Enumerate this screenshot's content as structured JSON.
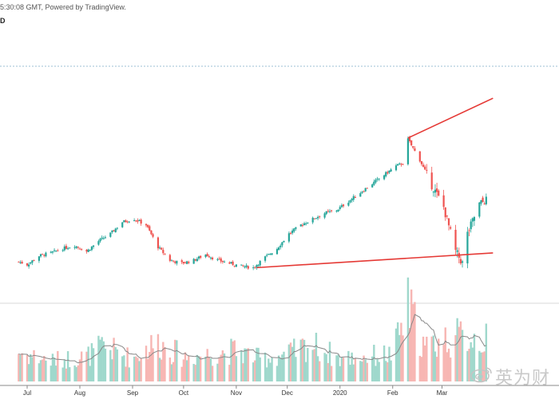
{
  "header": {
    "source_text": "5:30:08 GMT, Powered by TradingView.",
    "interval_text": "D"
  },
  "watermark": {
    "logo_icon": "weibo-icon",
    "text": "英为财"
  },
  "colors": {
    "up": "#26a69a",
    "down": "#ef5350",
    "volume_up": "#9fd8cc",
    "volume_down": "#f7b6b3",
    "trendline": "#e53935",
    "volume_ma": "#888888",
    "dotted_line": "#9ec1d6",
    "axis": "#888888"
  },
  "chart_data": {
    "type": "candlestick",
    "x_tick_labels": [
      "Jul",
      "Aug",
      "Sep",
      "Oct",
      "Nov",
      "Dec",
      "2020",
      "Feb",
      "Mar"
    ],
    "price_series": [
      [
        "2019-06-26",
        303
      ],
      [
        "2019-07-01",
        301
      ],
      [
        "2019-07-08",
        307
      ],
      [
        "2019-07-15",
        309
      ],
      [
        "2019-07-22",
        312
      ],
      [
        "2019-07-29",
        314
      ],
      [
        "2019-08-05",
        310
      ],
      [
        "2019-08-12",
        317
      ],
      [
        "2019-08-19",
        322
      ],
      [
        "2019-08-26",
        330
      ],
      [
        "2019-09-02",
        332
      ],
      [
        "2019-09-09",
        328
      ],
      [
        "2019-09-16",
        313
      ],
      [
        "2019-09-23",
        304
      ],
      [
        "2019-09-30",
        302
      ],
      [
        "2019-10-07",
        304
      ],
      [
        "2019-10-14",
        308
      ],
      [
        "2019-10-21",
        304
      ],
      [
        "2019-10-28",
        302
      ],
      [
        "2019-11-04",
        300
      ],
      [
        "2019-11-11",
        299
      ],
      [
        "2019-11-18",
        306
      ],
      [
        "2019-11-25",
        312
      ],
      [
        "2019-12-02",
        322
      ],
      [
        "2019-12-09",
        328
      ],
      [
        "2019-12-16",
        332
      ],
      [
        "2019-12-23",
        336
      ],
      [
        "2019-12-30",
        338
      ],
      [
        "2020-01-06",
        344
      ],
      [
        "2020-01-13",
        350
      ],
      [
        "2020-01-20",
        356
      ],
      [
        "2020-01-27",
        362
      ],
      [
        "2020-02-03",
        368
      ],
      [
        "2020-02-07",
        370
      ],
      [
        "2020-02-10",
        386
      ],
      [
        "2020-02-17",
        372
      ],
      [
        "2020-02-24",
        355
      ],
      [
        "2020-03-02",
        340
      ],
      [
        "2020-03-09",
        310
      ],
      [
        "2020-03-13",
        302
      ],
      [
        "2020-03-16",
        322
      ],
      [
        "2020-03-23",
        342
      ],
      [
        "2020-03-27",
        345
      ]
    ],
    "trendlines": [
      {
        "points": [
          [
            "2020-02-10",
            387
          ],
          [
            "2020-03-31",
            414
          ]
        ]
      },
      {
        "points": [
          [
            "2019-11-13",
            299
          ],
          [
            "2020-03-31",
            309
          ]
        ]
      }
    ],
    "volume_series": [
      [
        "2019-06-26",
        1.4
      ],
      [
        "2019-07-15",
        1.0
      ],
      [
        "2019-08-05",
        1.2
      ],
      [
        "2019-08-15",
        1.7
      ],
      [
        "2019-09-01",
        1.1
      ],
      [
        "2019-09-15",
        1.9
      ],
      [
        "2019-10-01",
        1.2
      ],
      [
        "2019-10-15",
        1.3
      ],
      [
        "2019-11-01",
        1.5
      ],
      [
        "2019-11-15",
        1.1
      ],
      [
        "2019-12-01",
        1.3
      ],
      [
        "2019-12-15",
        1.8
      ],
      [
        "2020-01-01",
        1.1
      ],
      [
        "2020-01-15",
        1.2
      ],
      [
        "2020-02-01",
        1.3
      ],
      [
        "2020-02-10",
        3.6
      ],
      [
        "2020-02-20",
        1.6
      ],
      [
        "2020-03-01",
        2.0
      ],
      [
        "2020-03-15",
        2.2
      ],
      [
        "2020-03-27",
        2.0
      ]
    ],
    "grid": false,
    "legend": "none"
  }
}
